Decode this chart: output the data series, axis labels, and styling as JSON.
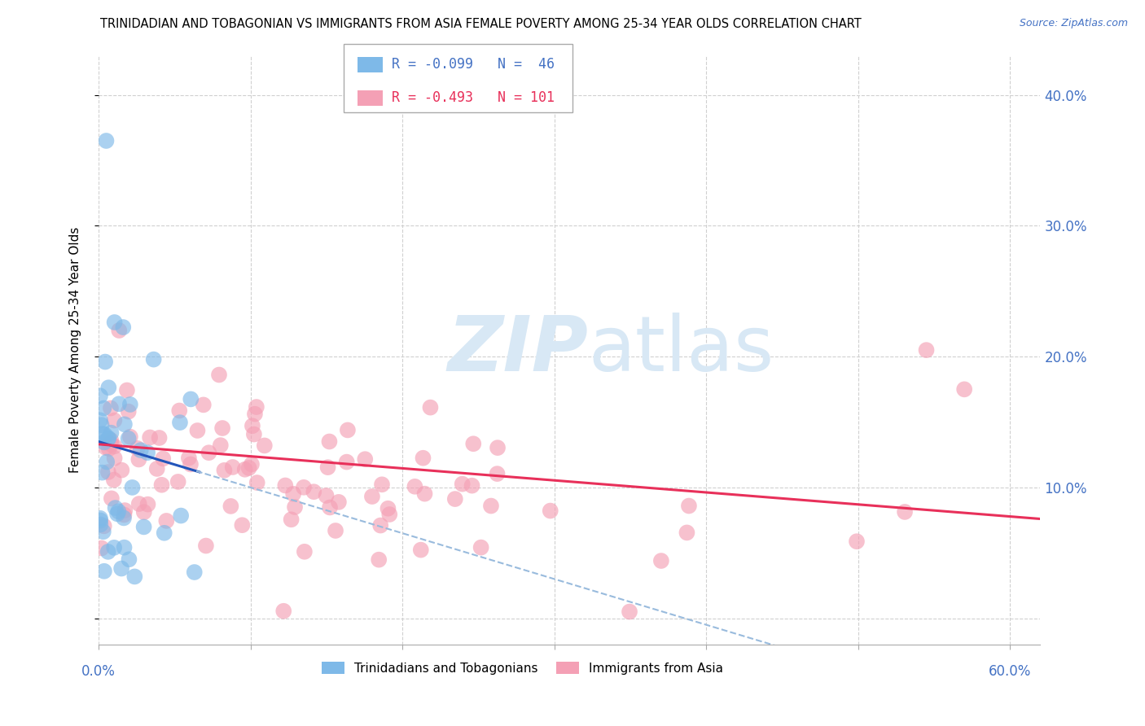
{
  "title": "TRINIDADIAN AND TOBAGONIAN VS IMMIGRANTS FROM ASIA FEMALE POVERTY AMONG 25-34 YEAR OLDS CORRELATION CHART",
  "source": "Source: ZipAtlas.com",
  "ylabel": "Female Poverty Among 25-34 Year Olds",
  "xlim": [
    0.0,
    0.62
  ],
  "ylim": [
    -0.02,
    0.43
  ],
  "yticks": [
    0.0,
    0.1,
    0.2,
    0.3,
    0.4
  ],
  "ytick_labels": [
    "",
    "10.0%",
    "20.0%",
    "30.0%",
    "40.0%"
  ],
  "xtick_left_label": "0.0%",
  "xtick_right_label": "60.0%",
  "grid_color": "#d0d0d0",
  "background_color": "#ffffff",
  "blue_color": "#7EB9E8",
  "pink_color": "#F4A0B5",
  "blue_line_color": "#2255BB",
  "blue_dash_color": "#99BBDD",
  "pink_line_color": "#E8305A",
  "legend_R1": "R = -0.099",
  "legend_N1": "N =  46",
  "legend_R2": "R = -0.493",
  "legend_N2": "N = 101",
  "legend_color1": "#4472C4",
  "legend_color2": "#E8305A",
  "label1": "Trinidadians and Tobagonians",
  "label2": "Immigrants from Asia",
  "watermark_text": "ZIPatlas",
  "watermark_color": "#D8E8F5",
  "blue_seed": 42,
  "pink_seed": 17
}
